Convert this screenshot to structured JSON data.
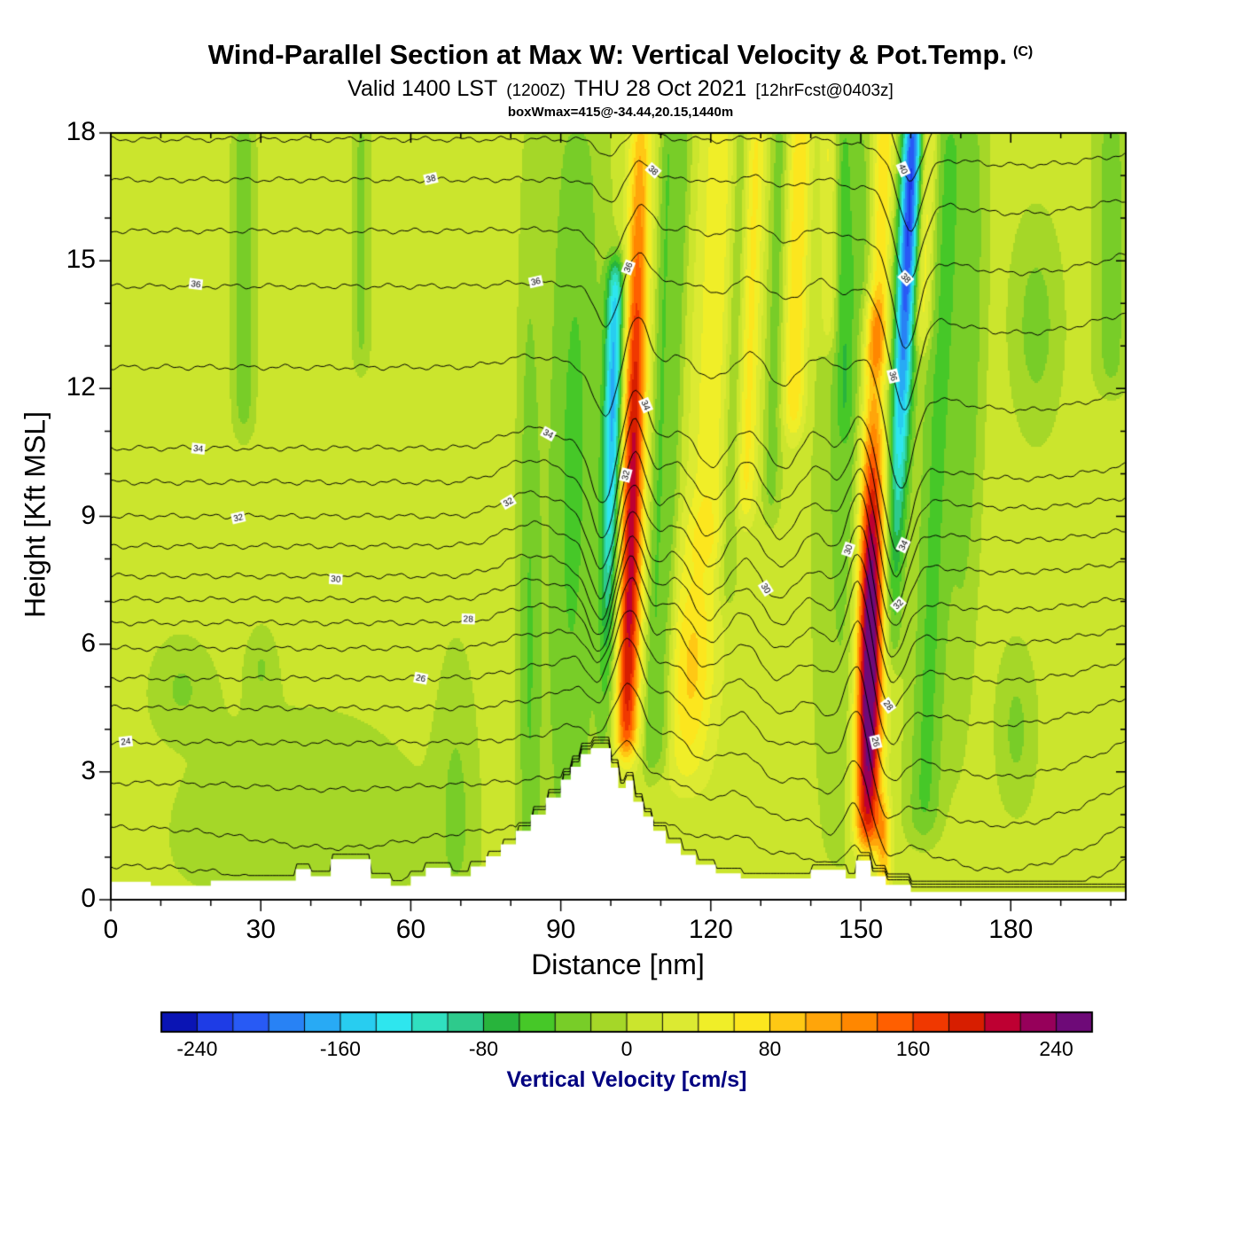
{
  "header": {
    "title": "Wind-Parallel Section at Max W: Vertical Velocity & Pot.Temp.",
    "title_unit": "(C)",
    "valid": "Valid 1400 LST",
    "zulu": "(1200Z)",
    "date": "THU 28 Oct 2021",
    "fcst": "[12hrFcst@0403z]",
    "box_info": "boxWmax=415@-34.44,20.15,1440m"
  },
  "chart_data": {
    "type": "heatmap",
    "title": "Wind-Parallel Section at Max W: Vertical Velocity & Pot.Temp. (C)",
    "subtitle": "Valid 1400 LST (1200Z) THU 28 Oct 2021 [12hrFcst@0403z]",
    "annotation": "boxWmax=415@-34.44,20.15,1440m",
    "xlabel": "Distance [nm]",
    "ylabel": "Height [Kft MSL]",
    "xlim": [
      0,
      203
    ],
    "ylim": [
      0,
      18
    ],
    "xticks": [
      0,
      30,
      60,
      90,
      120,
      150,
      180
    ],
    "xminor": 10,
    "yticks": [
      0,
      3,
      6,
      9,
      12,
      15,
      18
    ],
    "yminor": 1,
    "grid": false,
    "shading_variable": "Vertical Velocity [cm/s]",
    "contour_variable": "Potential Temperature (C)",
    "contour_interval": 1,
    "background_w": 10,
    "terrain_color": "#ffffff",
    "colorbar": {
      "label": "Vertical Velocity [cm/s]",
      "label_color": "#000080",
      "min": -260,
      "max": 260,
      "step": 20,
      "ticks": [
        -240,
        -160,
        -80,
        0,
        80,
        160,
        240
      ],
      "colors": [
        "#0a14b4",
        "#1e3ce6",
        "#285af5",
        "#2882f5",
        "#28aaf5",
        "#28cdf0",
        "#2ee6ee",
        "#30e0c0",
        "#2eca8c",
        "#28b43c",
        "#46c828",
        "#78cd28",
        "#a5d728",
        "#cbe52d",
        "#dcea32",
        "#f0ee28",
        "#fce61e",
        "#ffc814",
        "#ffa50a",
        "#ff8700",
        "#ff5f00",
        "#f03800",
        "#d71e00",
        "#be0032",
        "#96005a",
        "#6e0a78"
      ]
    },
    "vertical_velocity_features": [
      {
        "x": 103.5,
        "t": 0.2,
        "zr": 6,
        "w": 2.2,
        "a": 205,
        "z0": 3.4,
        "z1": 18.5,
        "zp": 8.5,
        "zs": 10
      },
      {
        "x": 99.2,
        "t": 0.2,
        "zr": 6,
        "w": 1.8,
        "a": -170,
        "z0": 3.4,
        "z1": 15,
        "zp": 12,
        "zs": 6
      },
      {
        "x": 92,
        "t": 0.1,
        "zr": 6,
        "w": 6,
        "a": -55,
        "z0": 0.5,
        "z1": 18.5,
        "zp": 10,
        "zs": 12
      },
      {
        "x": 108.5,
        "t": 0.25,
        "zr": 6,
        "w": 1.6,
        "a": -50,
        "z0": 3,
        "z1": 18.5
      },
      {
        "x": 151.5,
        "t": 0.12,
        "zr": 4,
        "w": 2.6,
        "a": 295,
        "z0": 1.2,
        "z1": 14.2,
        "zp": 5.8,
        "zs": 6.5
      },
      {
        "x": 153.5,
        "t": 0.25,
        "zr": 14,
        "w": 2.2,
        "a": 95,
        "z0": 12.5,
        "z1": 18.5
      },
      {
        "x": 157.5,
        "t": 0.35,
        "zr": 10,
        "w": 2.0,
        "a": -230,
        "z0": 5.5,
        "z1": 18.6,
        "zp": 16.5,
        "zs": 8
      },
      {
        "x": 148,
        "t": 0.2,
        "zr": 6,
        "w": 7,
        "a": -50,
        "z0": 0.5,
        "z1": 18.5,
        "zp": 12,
        "zs": 10
      },
      {
        "x": 165,
        "t": 0.3,
        "zr": 10,
        "w": 3.5,
        "a": -55,
        "z0": 1.5,
        "z1": 18.5
      },
      {
        "x": 26.5,
        "w": 2.2,
        "a": -45,
        "z0": 11,
        "z1": 18.5
      },
      {
        "x": 50,
        "w": 1.8,
        "a": -35,
        "z0": 12.5,
        "z1": 18.5
      },
      {
        "x": 38,
        "w": 26,
        "a": -28,
        "z0": 0,
        "z1": 6,
        "zp": 1.5,
        "zs": 3
      },
      {
        "x": 69,
        "w": 4,
        "a": -30,
        "z0": 0,
        "z1": 7,
        "zp": 2,
        "zs": 4
      },
      {
        "x": 83.5,
        "w": 2.2,
        "a": -45,
        "z0": 0.8,
        "z1": 18.5,
        "zp": 6,
        "zs": 10
      },
      {
        "x": 14,
        "w": 6,
        "a": -30,
        "z0": 3.5,
        "z1": 7,
        "zp": 5,
        "zs": 1.2
      },
      {
        "x": 30,
        "w": 3,
        "a": -28,
        "z0": 4,
        "z1": 7,
        "zp": 5.5,
        "zs": 1
      },
      {
        "x": 116,
        "t": 0.4,
        "zr": 5,
        "w": 4.5,
        "a": 75,
        "z0": 2.5,
        "z1": 9.5,
        "zp": 5.5,
        "zs": 3
      },
      {
        "x": 120,
        "t": 0.3,
        "zr": 12,
        "w": 3.5,
        "a": 45,
        "z0": 8,
        "z1": 18.5
      },
      {
        "x": 127.5,
        "t": 0.25,
        "zr": 12,
        "w": 2.0,
        "a": 55,
        "z0": 9,
        "z1": 18.5
      },
      {
        "x": 137,
        "t": 0.2,
        "zr": 14,
        "w": 2.2,
        "a": 70,
        "z0": 11,
        "z1": 18.5
      },
      {
        "x": 143.5,
        "w": 1.8,
        "a": 45,
        "z0": 13,
        "z1": 18.5
      },
      {
        "x": 111,
        "t": 0.3,
        "zr": 6,
        "w": 1.6,
        "a": -40,
        "z0": 3,
        "z1": 18.5
      },
      {
        "x": 124,
        "t": 0.25,
        "zr": 10,
        "w": 1.7,
        "a": -35,
        "z0": 7,
        "z1": 18.5
      },
      {
        "x": 132.5,
        "t": 0.2,
        "zr": 12,
        "w": 1.8,
        "a": -40,
        "z0": 9,
        "z1": 18.5
      },
      {
        "x": 146.5,
        "w": 1.5,
        "a": -30,
        "z0": 11,
        "z1": 18.5
      },
      {
        "x": 171,
        "t": 0.2,
        "zr": 10,
        "w": 3,
        "a": -45,
        "z0": 2,
        "z1": 18.5,
        "zp": 13,
        "zs": 8
      },
      {
        "x": 185,
        "w": 5,
        "a": -40,
        "z0": 10,
        "z1": 17,
        "zp": 13.5,
        "zs": 2.5
      },
      {
        "x": 181,
        "w": 4,
        "a": -35,
        "z0": 1.5,
        "z1": 7,
        "zp": 4,
        "zs": 2
      },
      {
        "x": 200,
        "w": 3.5,
        "a": -40,
        "z0": 12,
        "z1": 18.5
      },
      {
        "x": 163,
        "t": 0.3,
        "zr": 16,
        "w": 2.0,
        "a": 60,
        "z0": 13,
        "z1": 18.5
      },
      {
        "x": 154.5,
        "w": 1.5,
        "a": 90,
        "z0": 0.3,
        "z1": 2.2
      }
    ],
    "isentropes": {
      "lines": [
        {
          "theta": 21,
          "z": 0.8
        },
        {
          "theta": 22,
          "z": 1.7
        },
        {
          "theta": 23,
          "z": 2.75
        },
        {
          "theta": 24,
          "z": 3.7
        },
        {
          "theta": 25,
          "z": 4.5
        },
        {
          "theta": 26,
          "z": 5.2
        },
        {
          "theta": 27,
          "z": 5.9
        },
        {
          "theta": 28,
          "z": 6.5
        },
        {
          "theta": 29,
          "z": 7.05
        },
        {
          "theta": 30,
          "z": 7.6
        },
        {
          "theta": 31,
          "z": 8.3
        },
        {
          "theta": 32,
          "z": 9.0
        },
        {
          "theta": 33,
          "z": 9.8
        },
        {
          "theta": 34,
          "z": 10.6
        },
        {
          "theta": 35,
          "z": 12.5
        },
        {
          "theta": 36,
          "z": 14.4
        },
        {
          "theta": 37,
          "z": 15.7
        },
        {
          "theta": 38,
          "z": 16.9
        },
        {
          "theta": 39,
          "z": 17.85
        },
        {
          "theta": 40,
          "z": 18.7
        }
      ],
      "waves": [
        {
          "x": 98,
          "t": 0.18,
          "zr": 8,
          "w": 3.2,
          "a": -1.35,
          "zc": 10,
          "zs": 7
        },
        {
          "x": 104.5,
          "t": 0.18,
          "zr": 8,
          "w": 3.2,
          "a": 1.5,
          "zc": 9,
          "zs": 7
        },
        {
          "x": 99,
          "w": 9,
          "a": 0.9,
          "zc": 4.5,
          "zs": 2.2
        },
        {
          "x": 113,
          "t": 0.2,
          "zr": 8,
          "w": 3.5,
          "a": 0.55,
          "zc": 8,
          "zs": 5
        },
        {
          "x": 119.5,
          "t": 0.2,
          "zr": 8,
          "w": 3.5,
          "a": -0.45,
          "zc": 9,
          "zs": 5
        },
        {
          "x": 127,
          "t": 0.2,
          "zr": 8,
          "w": 3.5,
          "a": 0.5,
          "zc": 9,
          "zs": 6
        },
        {
          "x": 134,
          "t": 0.2,
          "zr": 10,
          "w": 3.5,
          "a": -0.45,
          "zc": 10,
          "zs": 6
        },
        {
          "x": 141,
          "t": 0.2,
          "zr": 10,
          "w": 3.5,
          "a": 0.45,
          "zc": 10,
          "zs": 6
        },
        {
          "x": 149.5,
          "t": 0.15,
          "zr": 6,
          "w": 3.2,
          "a": 1.7,
          "zc": 6.5,
          "zs": 5.5
        },
        {
          "x": 157.5,
          "t": 0.33,
          "zr": 11,
          "w": 3.6,
          "a": -2.4,
          "zc": 13.5,
          "zs": 8
        },
        {
          "x": 182,
          "w": 28,
          "a": -1.1,
          "zc": 14,
          "zs": 5
        },
        {
          "x": 178,
          "w": 38,
          "a": -3.0,
          "zc": 3.5,
          "zs": 3.2
        },
        {
          "x": 45,
          "w": 22,
          "a": -0.55,
          "zc": 1.2,
          "zs": 1.4
        },
        {
          "x": 84,
          "w": 8,
          "a": 0.55,
          "zc": 9,
          "zs": 4
        }
      ],
      "labels": [
        {
          "theta": 24,
          "x": [
            3
          ]
        },
        {
          "theta": 26,
          "x": [
            62,
            153
          ]
        },
        {
          "theta": 28,
          "x": [
            71.5,
            155.5
          ]
        },
        {
          "theta": 30,
          "x": [
            45,
            131,
            147.5
          ]
        },
        {
          "theta": 32,
          "x": [
            25.5,
            79.5,
            103,
            157.5
          ]
        },
        {
          "theta": 34,
          "x": [
            17.5,
            87.5,
            107,
            158.5
          ]
        },
        {
          "theta": 36,
          "x": [
            17,
            85,
            103.5,
            156.5
          ]
        },
        {
          "theta": 38,
          "x": [
            64,
            108.5,
            159
          ]
        },
        {
          "theta": 40,
          "x": [
            158.5
          ]
        }
      ]
    },
    "terrain_profile": [
      [
        0,
        0.42
      ],
      [
        8,
        0.42
      ],
      [
        8,
        0.33
      ],
      [
        20,
        0.33
      ],
      [
        20,
        0.45
      ],
      [
        37,
        0.45
      ],
      [
        37,
        0.72
      ],
      [
        40,
        0.72
      ],
      [
        40,
        0.55
      ],
      [
        44,
        0.55
      ],
      [
        44,
        0.95
      ],
      [
        52,
        0.95
      ],
      [
        52,
        0.5
      ],
      [
        56,
        0.5
      ],
      [
        56,
        0.33
      ],
      [
        60,
        0.33
      ],
      [
        60,
        0.55
      ],
      [
        63,
        0.55
      ],
      [
        63,
        0.75
      ],
      [
        68,
        0.75
      ],
      [
        68,
        0.55
      ],
      [
        72,
        0.55
      ],
      [
        72,
        0.78
      ],
      [
        75,
        0.78
      ],
      [
        75,
        1.02
      ],
      [
        78,
        1.02
      ],
      [
        78,
        1.3
      ],
      [
        81,
        1.3
      ],
      [
        81,
        1.62
      ],
      [
        84,
        1.62
      ],
      [
        84,
        2.0
      ],
      [
        87,
        2.0
      ],
      [
        87,
        2.4
      ],
      [
        90,
        2.4
      ],
      [
        90,
        2.82
      ],
      [
        92,
        2.82
      ],
      [
        92,
        3.12
      ],
      [
        94,
        3.12
      ],
      [
        94,
        3.42
      ],
      [
        96,
        3.42
      ],
      [
        96,
        3.56
      ],
      [
        100,
        3.56
      ],
      [
        100,
        3.1
      ],
      [
        101.5,
        3.1
      ],
      [
        101.5,
        2.62
      ],
      [
        103,
        2.62
      ],
      [
        103,
        2.8
      ],
      [
        104.5,
        2.8
      ],
      [
        104.5,
        2.3
      ],
      [
        106.5,
        2.3
      ],
      [
        106.5,
        1.95
      ],
      [
        108.5,
        1.95
      ],
      [
        108.5,
        1.62
      ],
      [
        111,
        1.62
      ],
      [
        111,
        1.32
      ],
      [
        114,
        1.32
      ],
      [
        114,
        1.05
      ],
      [
        117,
        1.05
      ],
      [
        117,
        0.82
      ],
      [
        121,
        0.82
      ],
      [
        121,
        0.62
      ],
      [
        126,
        0.62
      ],
      [
        126,
        0.5
      ],
      [
        140,
        0.5
      ],
      [
        140,
        0.7
      ],
      [
        147,
        0.7
      ],
      [
        147,
        0.5
      ],
      [
        149,
        0.5
      ],
      [
        149,
        0.92
      ],
      [
        152,
        0.92
      ],
      [
        152,
        0.55
      ],
      [
        155,
        0.55
      ],
      [
        155,
        0.35
      ],
      [
        160,
        0.35
      ],
      [
        160,
        0.18
      ],
      [
        203,
        0.18
      ]
    ]
  }
}
